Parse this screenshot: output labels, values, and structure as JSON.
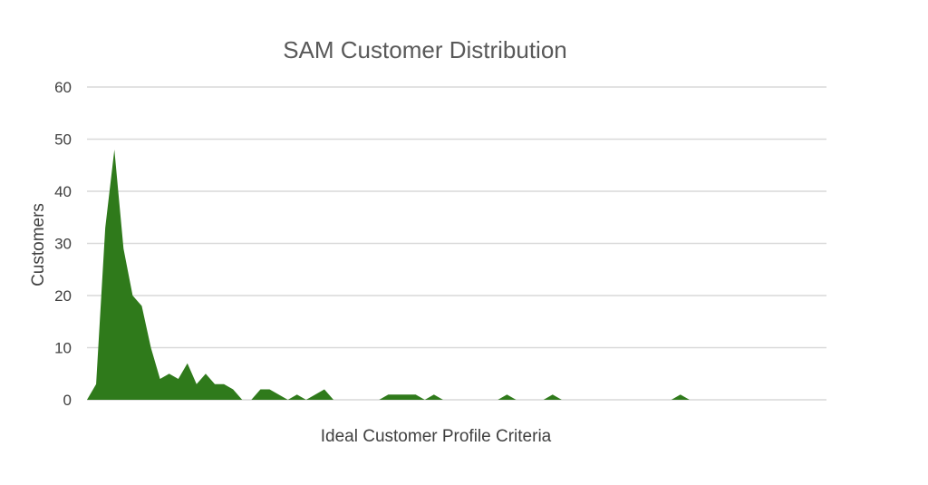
{
  "chart_data": {
    "type": "area",
    "title": "SAM Customer Distribution",
    "xlabel": "Ideal Customer Profile Criteria",
    "ylabel": "Customers",
    "ylim": [
      0,
      60
    ],
    "y_ticks": [
      "0",
      "10",
      "20",
      "30",
      "40",
      "50",
      "60"
    ],
    "grid": true,
    "colors": {
      "area": "#2f7a1b",
      "grid": "#d9d9d9",
      "text": "#404040",
      "title": "#595959"
    },
    "series": [
      {
        "values": [
          0,
          3,
          33,
          48,
          29,
          20,
          18,
          10,
          4,
          5,
          4,
          7,
          3,
          5,
          3,
          3,
          2,
          0,
          0,
          2,
          2,
          1,
          0,
          1,
          0,
          1,
          2,
          0,
          0,
          0,
          0,
          0,
          0,
          1,
          1,
          1,
          1,
          0,
          1,
          0,
          0,
          0,
          0,
          0,
          0,
          0,
          1,
          0,
          0,
          0,
          0,
          1,
          0,
          0,
          0,
          0,
          0,
          0,
          0,
          0,
          0,
          0,
          0,
          0,
          0,
          1,
          0,
          0,
          0,
          0,
          0,
          0,
          0,
          0,
          0,
          0,
          0,
          0,
          0,
          0,
          0,
          0
        ]
      }
    ]
  }
}
